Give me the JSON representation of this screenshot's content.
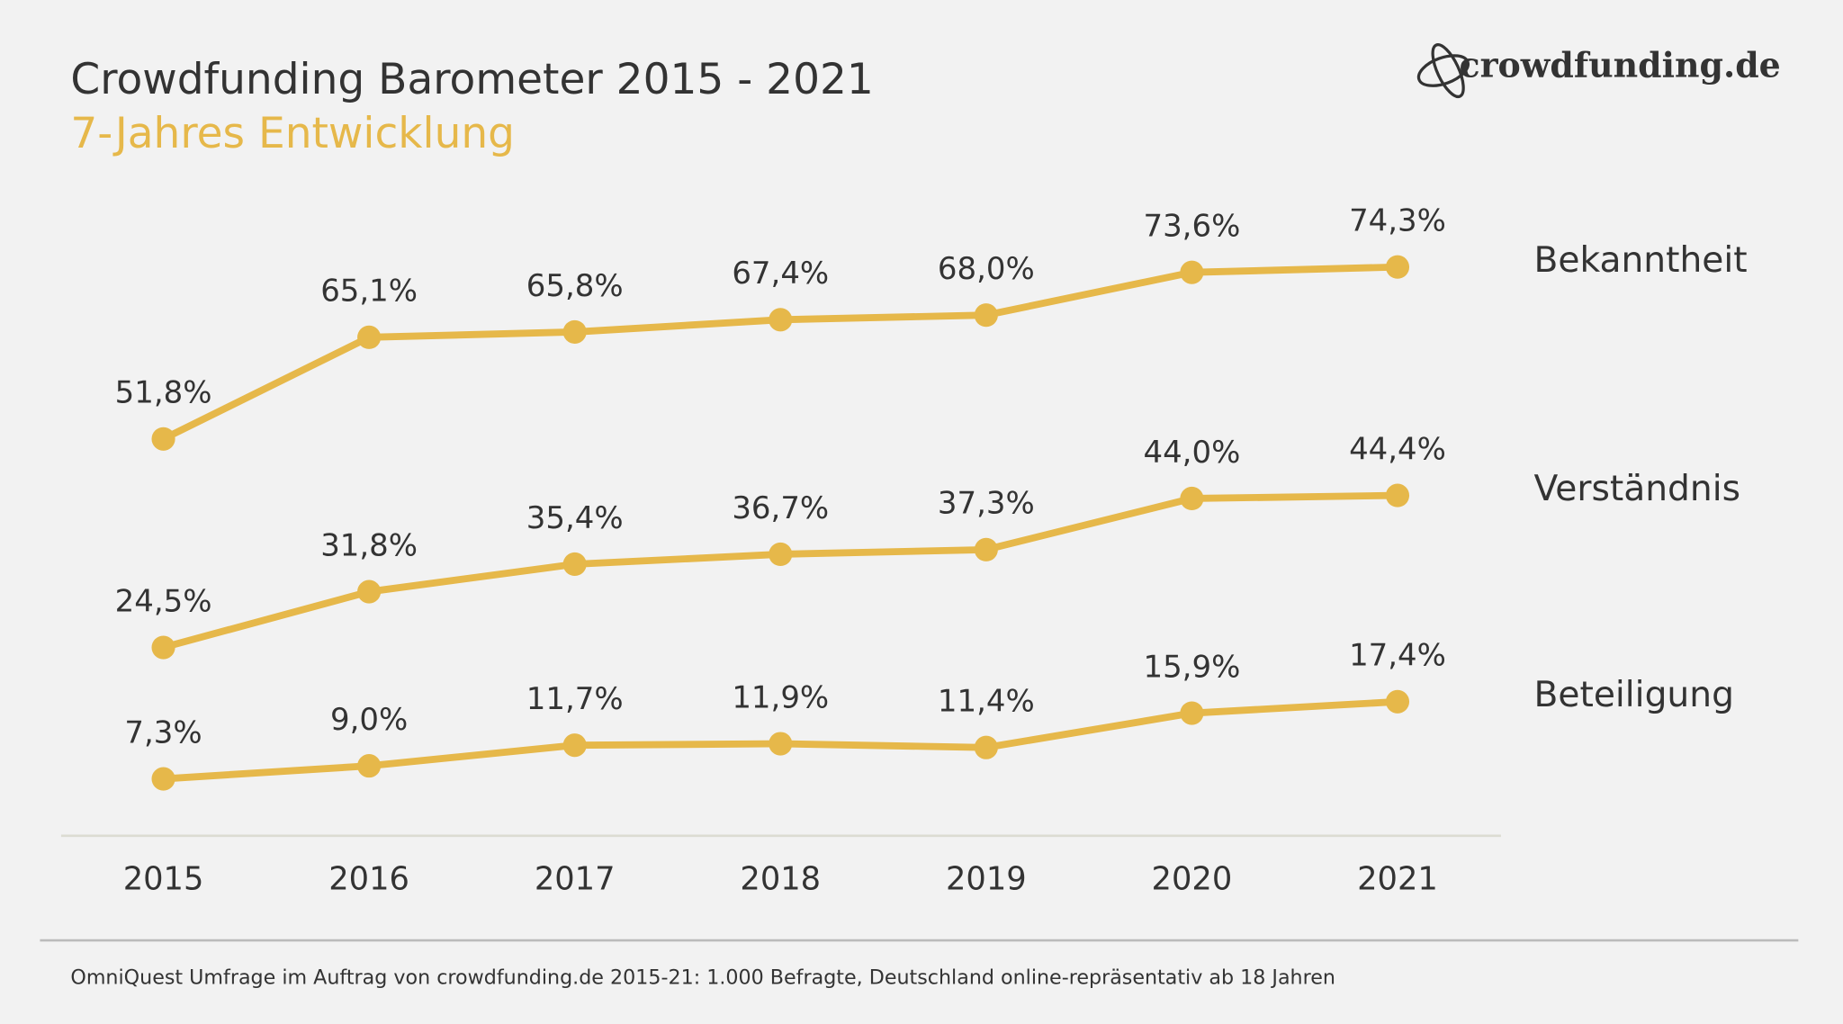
{
  "chart_data": {
    "type": "line",
    "title": "Crowdfunding Barometer 2015 - 2021",
    "subtitle": "7-Jahres Entwicklung",
    "logo": "crowdfunding.de",
    "source": "OmniQuest Umfrage im Auftrag von crowdfunding.de 2015-21: 1.000 Befragte, Deutschland online-repräsentativ ab 18 Jahren",
    "categories": [
      "2015",
      "2016",
      "2017",
      "2018",
      "2019",
      "2020",
      "2021"
    ],
    "ylim": [
      0,
      80
    ],
    "series": [
      {
        "name": "Bekanntheit",
        "color": "#e6b84a",
        "values": [
          51.8,
          65.1,
          65.8,
          67.4,
          68.0,
          73.6,
          74.3
        ],
        "value_labels": [
          "51,8%",
          "65,1%",
          "65,8%",
          "67,4%",
          "68,0%",
          "73,6%",
          "74,3%"
        ]
      },
      {
        "name": "Verständnis",
        "color": "#e6b84a",
        "values": [
          24.5,
          31.8,
          35.4,
          36.7,
          37.3,
          44.0,
          44.4
        ],
        "value_labels": [
          "24,5%",
          "31,8%",
          "35,4%",
          "36,7%",
          "37,3%",
          "44,0%",
          "44,4%"
        ]
      },
      {
        "name": "Beteiligung",
        "color": "#e6b84a",
        "values": [
          7.3,
          9.0,
          11.7,
          11.9,
          11.4,
          15.9,
          17.4
        ],
        "value_labels": [
          "7,3%",
          "9,0%",
          "11,7%",
          "11,9%",
          "11,4%",
          "15,9%",
          "17,4%"
        ]
      }
    ]
  }
}
